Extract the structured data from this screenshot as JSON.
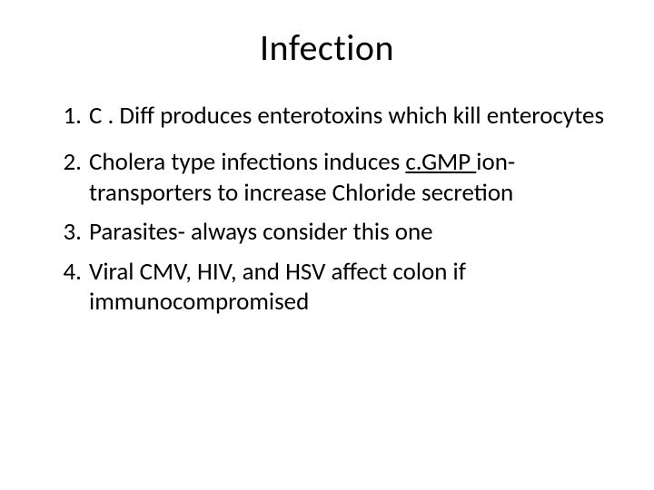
{
  "slide": {
    "background_color": "#ffffff",
    "text_color": "#000000",
    "title": {
      "text": "Infection",
      "fontsize": 40,
      "align": "center"
    },
    "list": {
      "type": "ordered",
      "fontsize": 27,
      "items": [
        {
          "number": "1.",
          "pre": "C . Diff produces enterotoxins which kill enterocytes",
          "u": "",
          "post": ""
        },
        {
          "number": "2.",
          "pre": "Cholera type infections induces ",
          "u": " c.GMP ",
          "post": "ion-transporters to increase Chloride  secretion"
        },
        {
          "number": "3.",
          "pre": "Parasites- always consider this one",
          "u": "",
          "post": ""
        },
        {
          "number": "4.",
          "pre": "Viral CMV, HIV, and HSV  affect colon if immunocompromised",
          "u": "",
          "post": ""
        }
      ]
    }
  }
}
